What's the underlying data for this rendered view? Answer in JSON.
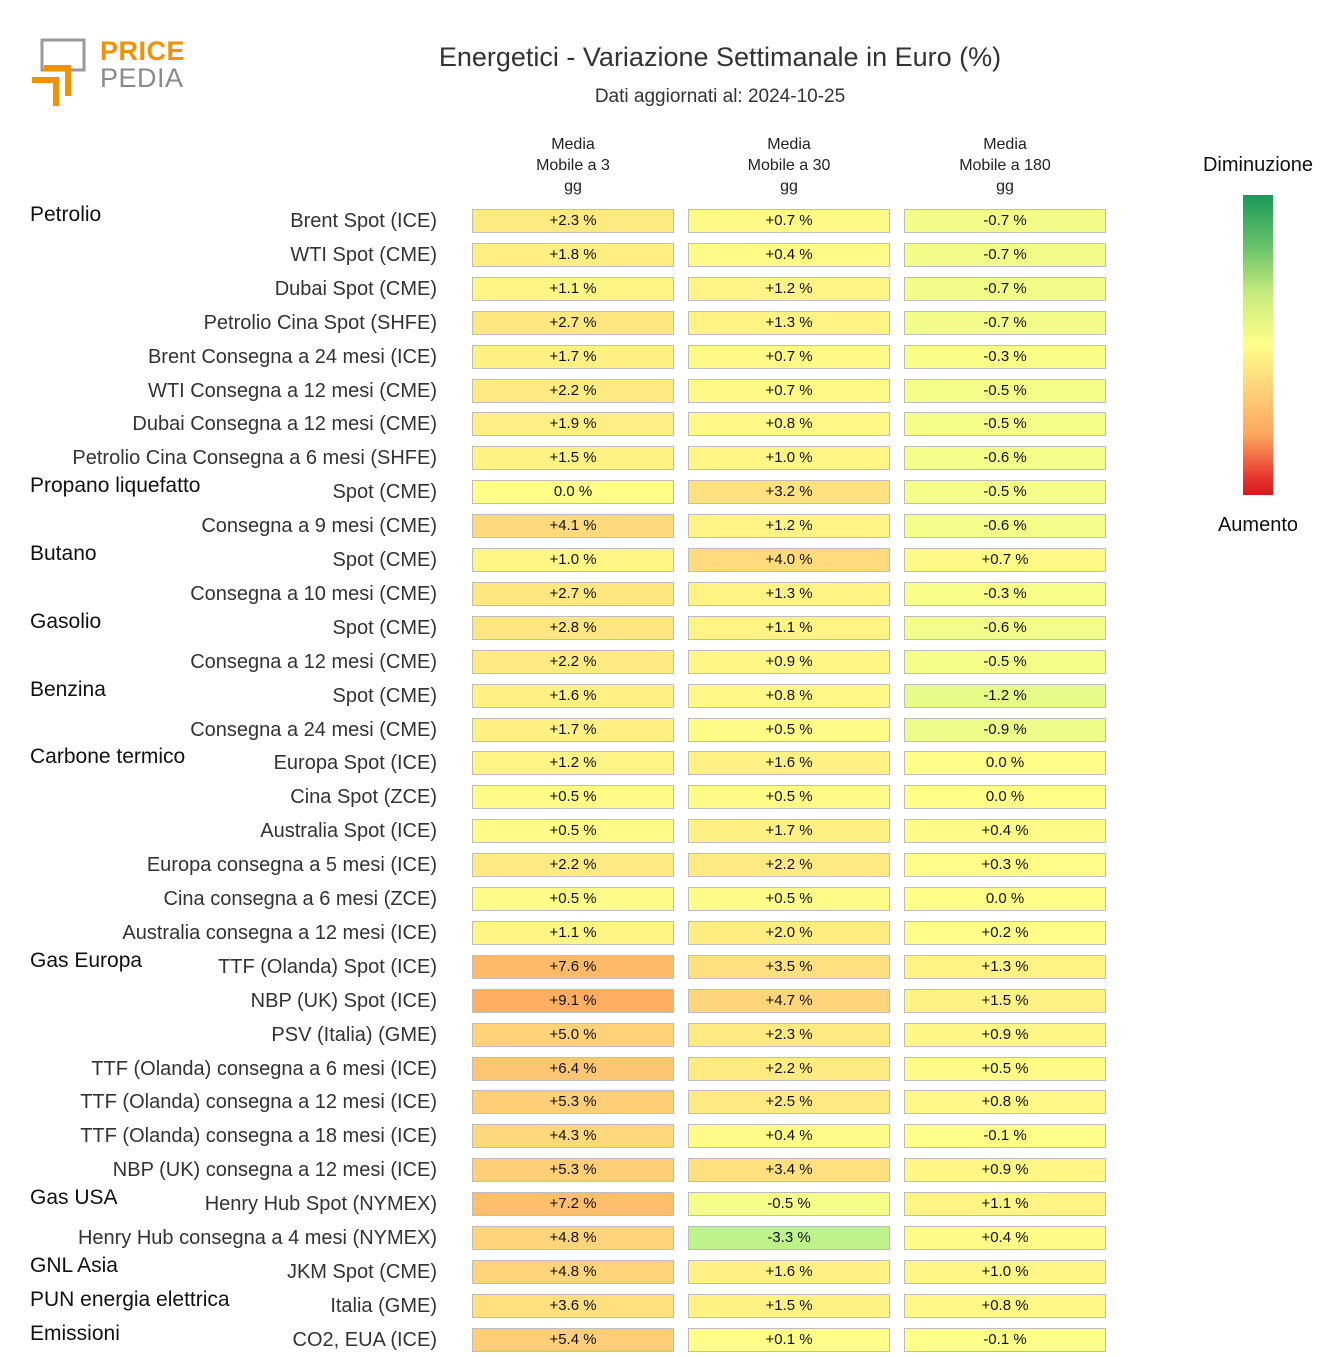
{
  "logo": {
    "line1": "PRICE",
    "line2": "PEDIA"
  },
  "title": "Energetici - Variazione Settimanale in Euro (%)",
  "subtitle": "Dati aggiornati al: 2024-10-25",
  "legend": {
    "top": "Diminuzione",
    "bottom": "Aumento"
  },
  "colors": {
    "decrease": "#1a9a5a",
    "neutral": "#ffff88",
    "increase": "#d7191c"
  },
  "chart_data": {
    "type": "table",
    "columns": [
      [
        "Media",
        "Mobile a 3",
        "gg"
      ],
      [
        "Media",
        "Mobile a 30",
        "gg"
      ],
      [
        "Media",
        "Mobile a 180",
        "gg"
      ]
    ],
    "unit": "%",
    "rows": [
      {
        "group": "Petrolio",
        "label": "Brent Spot (ICE)",
        "values": [
          2.3,
          0.7,
          -0.7
        ]
      },
      {
        "group": "",
        "label": "WTI Spot (CME)",
        "values": [
          1.8,
          0.4,
          -0.7
        ]
      },
      {
        "group": "",
        "label": "Dubai Spot (CME)",
        "values": [
          1.1,
          1.2,
          -0.7
        ]
      },
      {
        "group": "",
        "label": "Petrolio Cina Spot (SHFE)",
        "values": [
          2.7,
          1.3,
          -0.7
        ]
      },
      {
        "group": "",
        "label": "Brent Consegna a 24 mesi (ICE)",
        "values": [
          1.7,
          0.7,
          -0.3
        ]
      },
      {
        "group": "",
        "label": "WTI Consegna a 12 mesi (CME)",
        "values": [
          2.2,
          0.7,
          -0.5
        ]
      },
      {
        "group": "",
        "label": "Dubai Consegna a 12 mesi (CME)",
        "values": [
          1.9,
          0.8,
          -0.5
        ]
      },
      {
        "group": "",
        "label": "Petrolio Cina Consegna a 6 mesi (SHFE)",
        "values": [
          1.5,
          1.0,
          -0.6
        ]
      },
      {
        "group": "Propano liquefatto",
        "label": "Spot (CME)",
        "values": [
          0.0,
          3.2,
          -0.5
        ]
      },
      {
        "group": "",
        "label": "Consegna a 9 mesi (CME)",
        "values": [
          4.1,
          1.2,
          -0.6
        ]
      },
      {
        "group": "Butano",
        "label": "Spot (CME)",
        "values": [
          1.0,
          4.0,
          0.7
        ]
      },
      {
        "group": "",
        "label": "Consegna a 10 mesi (CME)",
        "values": [
          2.7,
          1.3,
          -0.3
        ]
      },
      {
        "group": "Gasolio",
        "label": "Spot (CME)",
        "values": [
          2.8,
          1.1,
          -0.6
        ]
      },
      {
        "group": "",
        "label": "Consegna a 12 mesi (CME)",
        "values": [
          2.2,
          0.9,
          -0.5
        ]
      },
      {
        "group": "Benzina",
        "label": "Spot (CME)",
        "values": [
          1.6,
          0.8,
          -1.2
        ]
      },
      {
        "group": "",
        "label": "Consegna a 24 mesi (CME)",
        "values": [
          1.7,
          0.5,
          -0.9
        ]
      },
      {
        "group": "Carbone termico",
        "label": "Europa Spot (ICE)",
        "values": [
          1.2,
          1.6,
          0.0
        ]
      },
      {
        "group": "",
        "label": "Cina Spot (ZCE)",
        "values": [
          0.5,
          0.5,
          0.0
        ]
      },
      {
        "group": "",
        "label": "Australia Spot (ICE)",
        "values": [
          0.5,
          1.7,
          0.4
        ]
      },
      {
        "group": "",
        "label": "Europa consegna a 5 mesi (ICE)",
        "values": [
          2.2,
          2.2,
          0.3
        ]
      },
      {
        "group": "",
        "label": "Cina consegna a 6 mesi (ZCE)",
        "values": [
          0.5,
          0.5,
          0.0
        ]
      },
      {
        "group": "",
        "label": "Australia consegna a 12 mesi (ICE)",
        "values": [
          1.1,
          2.0,
          0.2
        ]
      },
      {
        "group": "Gas Europa",
        "label": "TTF (Olanda) Spot (ICE)",
        "values": [
          7.6,
          3.5,
          1.3
        ]
      },
      {
        "group": "",
        "label": "NBP (UK) Spot (ICE)",
        "values": [
          9.1,
          4.7,
          1.5
        ]
      },
      {
        "group": "",
        "label": "PSV (Italia) (GME)",
        "values": [
          5.0,
          2.3,
          0.9
        ]
      },
      {
        "group": "",
        "label": "TTF (Olanda) consegna a 6 mesi (ICE)",
        "values": [
          6.4,
          2.2,
          0.5
        ]
      },
      {
        "group": "",
        "label": "TTF (Olanda) consegna a 12 mesi (ICE)",
        "values": [
          5.3,
          2.5,
          0.8
        ]
      },
      {
        "group": "",
        "label": "TTF (Olanda) consegna a 18 mesi (ICE)",
        "values": [
          4.3,
          0.4,
          -0.1
        ]
      },
      {
        "group": "",
        "label": "NBP (UK) consegna a 12 mesi (ICE)",
        "values": [
          5.3,
          3.4,
          0.9
        ]
      },
      {
        "group": "Gas USA",
        "label": "Henry Hub Spot (NYMEX)",
        "values": [
          7.2,
          -0.5,
          1.1
        ]
      },
      {
        "group": "",
        "label": "Henry Hub consegna a 4 mesi (NYMEX)",
        "values": [
          4.8,
          -3.3,
          0.4
        ]
      },
      {
        "group": "GNL Asia",
        "label": "JKM Spot (CME)",
        "values": [
          4.8,
          1.6,
          1.0
        ]
      },
      {
        "group": "PUN energia elettrica",
        "label": "Italia (GME)",
        "values": [
          3.6,
          1.5,
          0.8
        ]
      },
      {
        "group": "Emissioni",
        "label": "CO2, EUA (ICE)",
        "values": [
          5.4,
          0.1,
          -0.1
        ]
      }
    ]
  }
}
